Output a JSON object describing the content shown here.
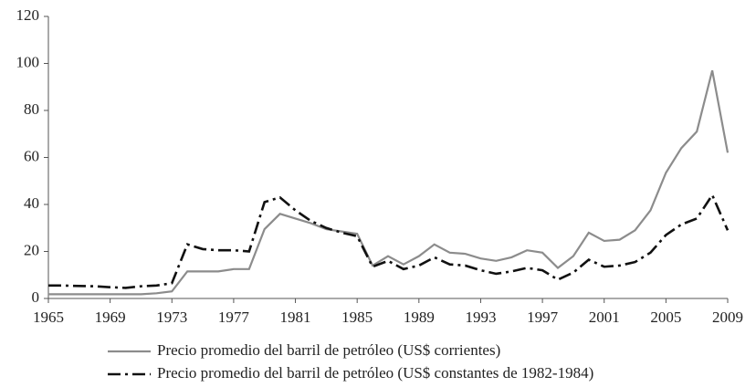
{
  "chart_data": {
    "type": "line",
    "x": [
      1965,
      1966,
      1967,
      1968,
      1969,
      1970,
      1971,
      1972,
      1973,
      1974,
      1975,
      1976,
      1977,
      1978,
      1979,
      1980,
      1981,
      1982,
      1983,
      1984,
      1985,
      1986,
      1987,
      1988,
      1989,
      1990,
      1991,
      1992,
      1993,
      1994,
      1995,
      1996,
      1997,
      1998,
      1999,
      2000,
      2001,
      2002,
      2003,
      2004,
      2005,
      2006,
      2007,
      2008,
      2009
    ],
    "series": [
      {
        "name": "Precio promedio del barril de petróleo (US$ corrientes)",
        "color": "#8c8c8c",
        "style": "solid",
        "values": [
          1.8,
          1.8,
          1.8,
          1.8,
          1.8,
          1.8,
          1.8,
          2.2,
          3,
          11.5,
          11.5,
          11.5,
          12.5,
          12.5,
          29.5,
          36,
          34,
          32,
          29.5,
          28.5,
          27.5,
          14,
          18,
          14.5,
          18,
          23,
          19.5,
          19,
          17,
          16,
          17.5,
          20.5,
          19.5,
          13,
          18,
          28,
          24.5,
          25,
          29,
          37.5,
          53.5,
          64,
          71,
          97,
          62
        ]
      },
      {
        "name": "Precio promedio del barril de petróleo (US$ constantes de 1982-1984)",
        "color": "#111111",
        "style": "dashdot",
        "values": [
          5.5,
          5.5,
          5.3,
          5.2,
          4.8,
          4.5,
          5.2,
          5.5,
          6.5,
          23,
          21,
          20.5,
          20.5,
          20,
          41,
          43,
          37.5,
          33,
          30,
          28,
          26.5,
          13.5,
          16,
          12.5,
          14,
          17.5,
          14.5,
          14,
          12,
          10.5,
          11.5,
          13,
          12,
          8,
          11,
          16.5,
          13.5,
          14,
          15.5,
          19.5,
          27,
          31.5,
          34,
          44,
          29
        ]
      }
    ],
    "xlim": [
      1965,
      2009
    ],
    "xticks": [
      1965,
      1969,
      1973,
      1977,
      1981,
      1985,
      1989,
      1993,
      1997,
      2001,
      2005,
      2009
    ],
    "ylim": [
      0,
      120
    ],
    "yticks": [
      0,
      20,
      40,
      60,
      80,
      100,
      120
    ],
    "grid": false
  }
}
